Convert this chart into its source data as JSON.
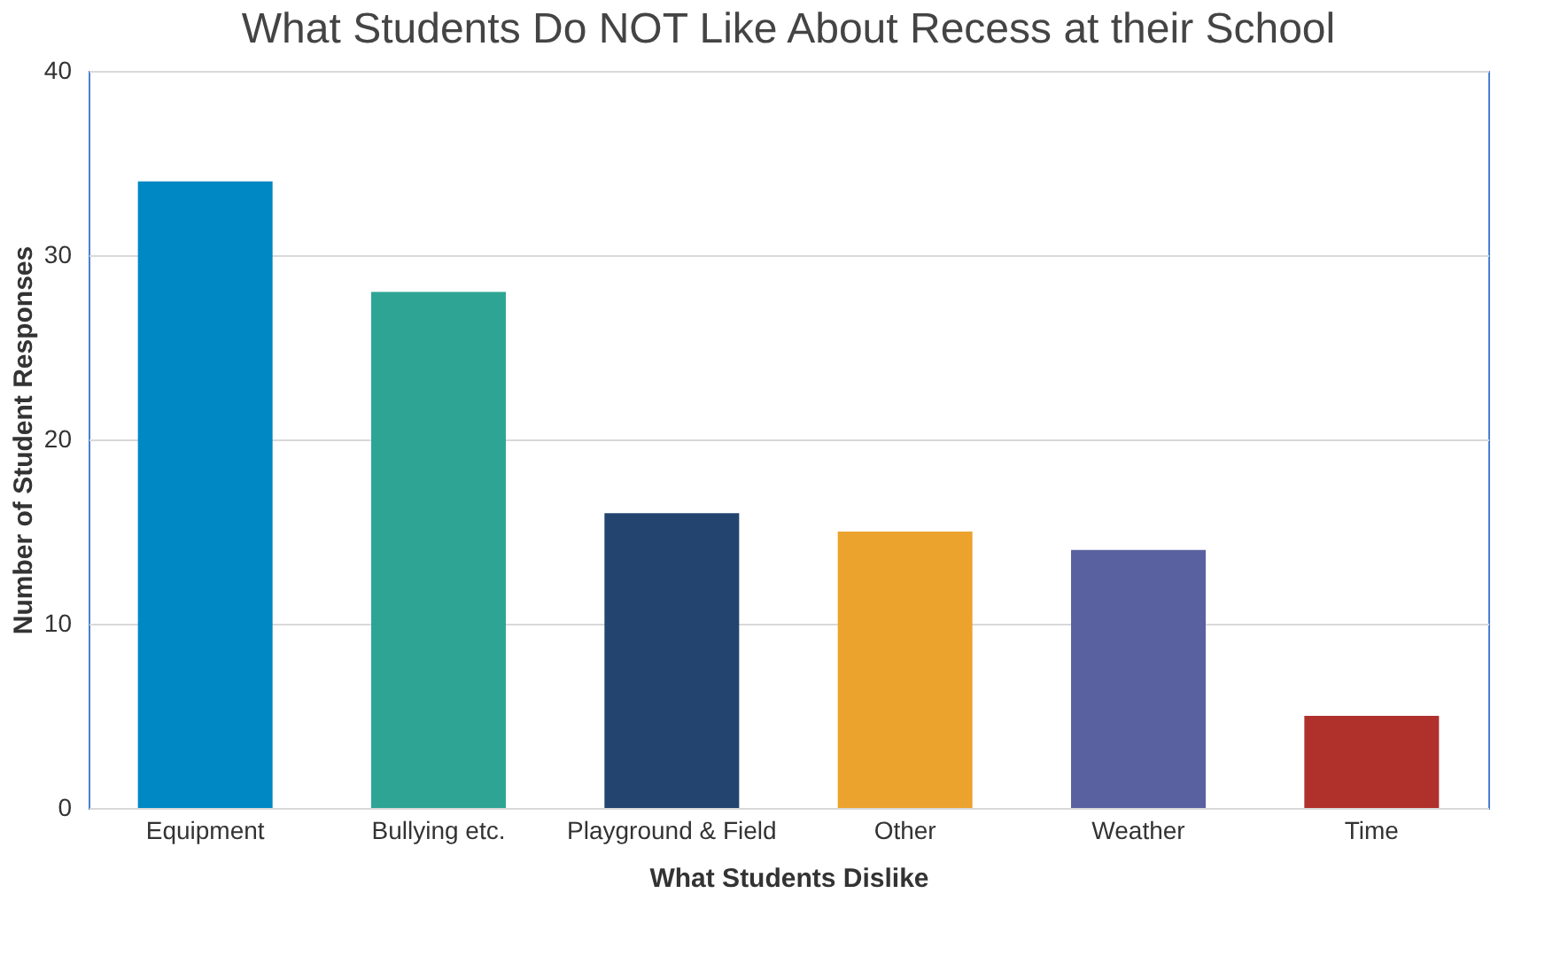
{
  "chart_data": {
    "type": "bar",
    "title": "What Students Do NOT Like About Recess at their School",
    "xlabel": "What Students Dislike",
    "ylabel": "Number of Student Responses",
    "categories": [
      "Equipment",
      "Bullying etc.",
      "Playground & Field",
      "Other",
      "Weather",
      "Time"
    ],
    "values": [
      34,
      28,
      16,
      15,
      14,
      5
    ],
    "colors": [
      "#0088c4",
      "#2ea594",
      "#22446f",
      "#eba32e",
      "#5a61a0",
      "#b0302c"
    ],
    "ylim": [
      0,
      40
    ],
    "yticks": [
      0,
      10,
      20,
      30,
      40
    ],
    "grid": "y",
    "legend": false
  }
}
